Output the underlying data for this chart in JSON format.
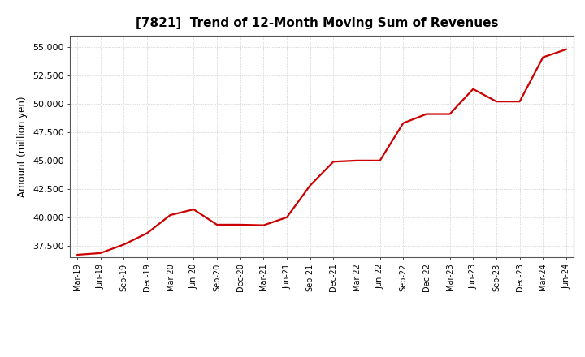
{
  "title": "[7821]  Trend of 12-Month Moving Sum of Revenues",
  "ylabel": "Amount (million yen)",
  "line_color": "#cc0000",
  "background_color": "#ffffff",
  "plot_bg_color": "#ffffff",
  "grid_color": "#999999",
  "ylim": [
    36500,
    56000
  ],
  "yticks": [
    37500,
    40000,
    42500,
    45000,
    47500,
    50000,
    52500,
    55000
  ],
  "x_labels": [
    "Mar-19",
    "Jun-19",
    "Sep-19",
    "Dec-19",
    "Mar-20",
    "Jun-20",
    "Sep-20",
    "Dec-20",
    "Mar-21",
    "Jun-21",
    "Sep-21",
    "Dec-21",
    "Mar-22",
    "Jun-22",
    "Sep-22",
    "Dec-22",
    "Mar-23",
    "Jun-23",
    "Sep-23",
    "Dec-23",
    "Mar-24",
    "Jun-24"
  ],
  "values": [
    36700,
    36850,
    37600,
    38600,
    40200,
    40700,
    39350,
    39350,
    39300,
    40000,
    42800,
    44900,
    45000,
    45000,
    48300,
    49100,
    49100,
    51300,
    50200,
    50200,
    54100,
    54800
  ]
}
